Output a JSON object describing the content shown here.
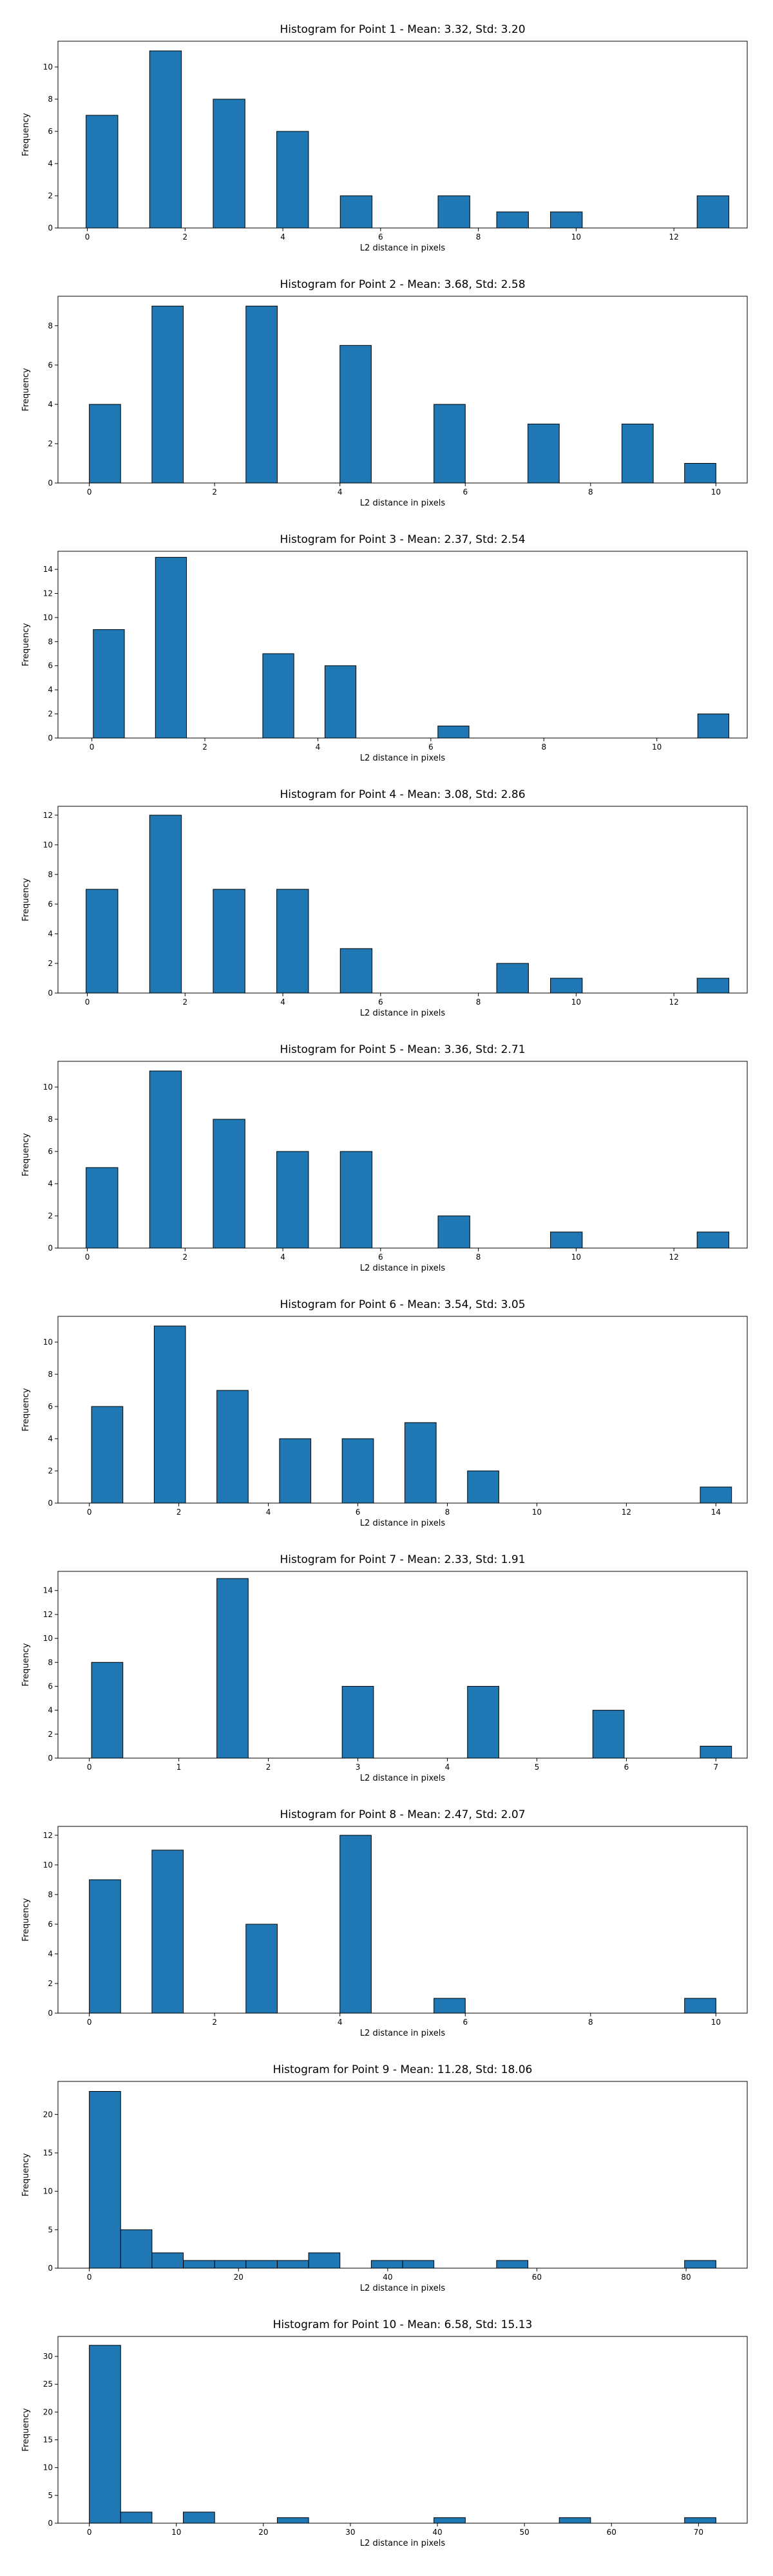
{
  "chart_data": [
    {
      "type": "bar",
      "title": "Histogram for Point 1 - Mean: 3.32, Std: 3.20",
      "xlabel": "L2 distance in pixels",
      "ylabel": "Frequency",
      "bar_width": 0.65,
      "x": [
        0.3,
        1.6,
        2.9,
        4.2,
        5.5,
        7.5,
        8.7,
        9.8,
        12.8
      ],
      "values": [
        7,
        11,
        8,
        6,
        2,
        2,
        1,
        1,
        2
      ],
      "xlim": [
        -0.6,
        13.5
      ],
      "ylim": [
        0,
        11.6
      ],
      "xticks": [
        0,
        2,
        4,
        6,
        8,
        10,
        12
      ],
      "yticks": [
        0,
        2,
        4,
        6,
        8,
        10
      ],
      "bar_color": "#1f77b4",
      "grid": false
    },
    {
      "type": "bar",
      "title": "Histogram for Point 2 - Mean: 3.68, Std: 2.58",
      "xlabel": "L2 distance in pixels",
      "ylabel": "Frequency",
      "bar_width": 0.5,
      "x": [
        0.25,
        1.25,
        2.75,
        4.25,
        5.75,
        7.25,
        8.75,
        9.75
      ],
      "values": [
        4,
        9,
        9,
        7,
        4,
        3,
        3,
        1
      ],
      "xlim": [
        -0.5,
        10.5
      ],
      "ylim": [
        0,
        9.5
      ],
      "xticks": [
        0,
        2,
        4,
        6,
        8,
        10
      ],
      "yticks": [
        0,
        2,
        4,
        6,
        8
      ],
      "bar_color": "#1f77b4",
      "grid": false
    },
    {
      "type": "bar",
      "title": "Histogram for Point 3 - Mean: 2.37, Std: 2.54",
      "xlabel": "L2 distance in pixels",
      "ylabel": "Frequency",
      "bar_width": 0.55,
      "x": [
        0.3,
        1.4,
        3.3,
        4.4,
        6.4,
        11.0
      ],
      "values": [
        9,
        15,
        7,
        6,
        1,
        2
      ],
      "xlim": [
        -0.6,
        11.6
      ],
      "ylim": [
        0,
        15.5
      ],
      "xticks": [
        0,
        2,
        4,
        6,
        8,
        10
      ],
      "yticks": [
        0,
        2,
        4,
        6,
        8,
        10,
        12,
        14
      ],
      "bar_color": "#1f77b4",
      "grid": false
    },
    {
      "type": "bar",
      "title": "Histogram for Point 4 - Mean: 3.08, Std: 2.86",
      "xlabel": "L2 distance in pixels",
      "ylabel": "Frequency",
      "bar_width": 0.65,
      "x": [
        0.3,
        1.6,
        2.9,
        4.2,
        5.5,
        8.7,
        9.8,
        12.8
      ],
      "values": [
        7,
        12,
        7,
        7,
        3,
        2,
        1,
        1
      ],
      "xlim": [
        -0.6,
        13.5
      ],
      "ylim": [
        0,
        12.6
      ],
      "xticks": [
        0,
        2,
        4,
        6,
        8,
        10,
        12
      ],
      "yticks": [
        0,
        2,
        4,
        6,
        8,
        10,
        12
      ],
      "bar_color": "#1f77b4",
      "grid": false
    },
    {
      "type": "bar",
      "title": "Histogram for Point 5 - Mean: 3.36, Std: 2.71",
      "xlabel": "L2 distance in pixels",
      "ylabel": "Frequency",
      "bar_width": 0.65,
      "x": [
        0.3,
        1.6,
        2.9,
        4.2,
        5.5,
        7.5,
        9.8,
        12.8
      ],
      "values": [
        5,
        11,
        8,
        6,
        6,
        2,
        1,
        1
      ],
      "xlim": [
        -0.6,
        13.5
      ],
      "ylim": [
        0,
        11.6
      ],
      "xticks": [
        0,
        2,
        4,
        6,
        8,
        10,
        12
      ],
      "yticks": [
        0,
        2,
        4,
        6,
        8,
        10
      ],
      "bar_color": "#1f77b4",
      "grid": false
    },
    {
      "type": "bar",
      "title": "Histogram for Point 6 - Mean: 3.54, Std: 3.05",
      "xlabel": "L2 distance in pixels",
      "ylabel": "Frequency",
      "bar_width": 0.7,
      "x": [
        0.4,
        1.8,
        3.2,
        4.6,
        6.0,
        7.4,
        8.8,
        14.0
      ],
      "values": [
        6,
        11,
        7,
        4,
        4,
        5,
        2,
        1
      ],
      "xlim": [
        -0.7,
        14.7
      ],
      "ylim": [
        0,
        11.6
      ],
      "xticks": [
        0,
        2,
        4,
        6,
        8,
        10,
        12,
        14
      ],
      "yticks": [
        0,
        2,
        4,
        6,
        8,
        10
      ],
      "bar_color": "#1f77b4",
      "grid": false
    },
    {
      "type": "bar",
      "title": "Histogram for Point 7 - Mean: 2.33, Std: 1.91",
      "xlabel": "L2 distance in pixels",
      "ylabel": "Frequency",
      "bar_width": 0.35,
      "x": [
        0.2,
        1.6,
        3.0,
        4.4,
        5.8,
        7.0
      ],
      "values": [
        8,
        15,
        6,
        6,
        4,
        1
      ],
      "xlim": [
        -0.35,
        7.35
      ],
      "ylim": [
        0,
        15.6
      ],
      "xticks": [
        0,
        1,
        2,
        3,
        4,
        5,
        6,
        7
      ],
      "yticks": [
        0,
        2,
        4,
        6,
        8,
        10,
        12,
        14
      ],
      "bar_color": "#1f77b4",
      "grid": false
    },
    {
      "type": "bar",
      "title": "Histogram for Point 8 - Mean: 2.47, Std: 2.07",
      "xlabel": "L2 distance in pixels",
      "ylabel": "Frequency",
      "bar_width": 0.5,
      "x": [
        0.25,
        1.25,
        2.75,
        4.25,
        5.75,
        9.75
      ],
      "values": [
        9,
        11,
        6,
        12,
        1,
        1
      ],
      "xlim": [
        -0.5,
        10.5
      ],
      "ylim": [
        0,
        12.6
      ],
      "xticks": [
        0,
        2,
        4,
        6,
        8,
        10
      ],
      "yticks": [
        0,
        2,
        4,
        6,
        8,
        10,
        12
      ],
      "bar_color": "#1f77b4",
      "grid": false
    },
    {
      "type": "bar",
      "title": "Histogram for Point 9 - Mean: 11.28, Std: 18.06",
      "xlabel": "L2 distance in pixels",
      "ylabel": "Frequency",
      "bar_width": 4.2,
      "x": [
        2.1,
        6.3,
        10.5,
        14.7,
        18.9,
        23.1,
        27.3,
        31.5,
        39.9,
        44.1,
        56.7,
        81.9
      ],
      "values": [
        23,
        5,
        2,
        1,
        1,
        1,
        1,
        2,
        1,
        1,
        1,
        1
      ],
      "xlim": [
        -4.2,
        88.2
      ],
      "ylim": [
        0,
        24.3
      ],
      "xticks": [
        0,
        20,
        40,
        60,
        80
      ],
      "yticks": [
        0,
        5,
        10,
        15,
        20
      ],
      "bar_color": "#1f77b4",
      "grid": false
    },
    {
      "type": "bar",
      "title": "Histogram for Point 10 - Mean: 6.58, Std: 15.13",
      "xlabel": "L2 distance in pixels",
      "ylabel": "Frequency",
      "bar_width": 3.6,
      "x": [
        1.8,
        5.4,
        12.6,
        23.4,
        41.4,
        55.8,
        70.2
      ],
      "values": [
        32,
        2,
        2,
        1,
        1,
        1,
        1
      ],
      "xlim": [
        -3.6,
        75.6
      ],
      "ylim": [
        0,
        33.6
      ],
      "xticks": [
        0,
        10,
        20,
        30,
        40,
        50,
        60,
        70
      ],
      "yticks": [
        0,
        5,
        10,
        15,
        20,
        25,
        30
      ],
      "bar_color": "#1f77b4",
      "grid": false
    }
  ]
}
